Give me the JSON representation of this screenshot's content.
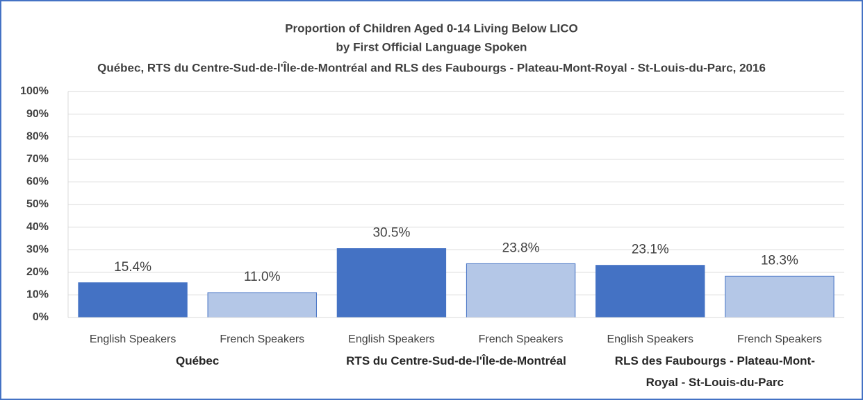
{
  "chart_data": {
    "type": "bar",
    "title": "Proportion of Children Aged 0-14 Living Below LICO",
    "subtitle": "by First Official Language Spoken",
    "subtitle2": "Québec, RTS du Centre-Sud-de-l'Île-de-Montréal and RLS des Faubourgs - Plateau-Mont-Royal - St-Louis-du-Parc, 2016",
    "groups": [
      {
        "name": "Québec",
        "categories": [
          "English Speakers",
          "French Speakers"
        ],
        "values": [
          15.4,
          11.0
        ],
        "value_labels": [
          "15.4%",
          "11.0%"
        ]
      },
      {
        "name": "RTS du Centre-Sud-de-l'Île-de-Montréal",
        "categories": [
          "English Speakers",
          "French Speakers"
        ],
        "values": [
          30.5,
          23.8
        ],
        "value_labels": [
          "30.5%",
          "23.8%"
        ]
      },
      {
        "name": "RLS des Faubourgs - Plateau-Mont-Royal - St-Louis-du-Parc",
        "categories": [
          "English Speakers",
          "French Speakers"
        ],
        "values": [
          23.1,
          18.3
        ],
        "value_labels": [
          "23.1%",
          "18.3%"
        ]
      }
    ],
    "colors": [
      "#4472c4",
      "#b4c7e7"
    ],
    "ylim": [
      0,
      100
    ],
    "yticks": [
      {
        "value": 0,
        "label": "0%"
      },
      {
        "value": 10,
        "label": "10%"
      },
      {
        "value": 20,
        "label": "20%"
      },
      {
        "value": 30,
        "label": "30%"
      },
      {
        "value": 40,
        "label": "40%"
      },
      {
        "value": 50,
        "label": "50%"
      },
      {
        "value": 60,
        "label": "60%"
      },
      {
        "value": 70,
        "label": "70%"
      },
      {
        "value": 80,
        "label": "80%"
      },
      {
        "value": 90,
        "label": "90%"
      },
      {
        "value": 100,
        "label": "100%"
      }
    ],
    "grid": true
  }
}
